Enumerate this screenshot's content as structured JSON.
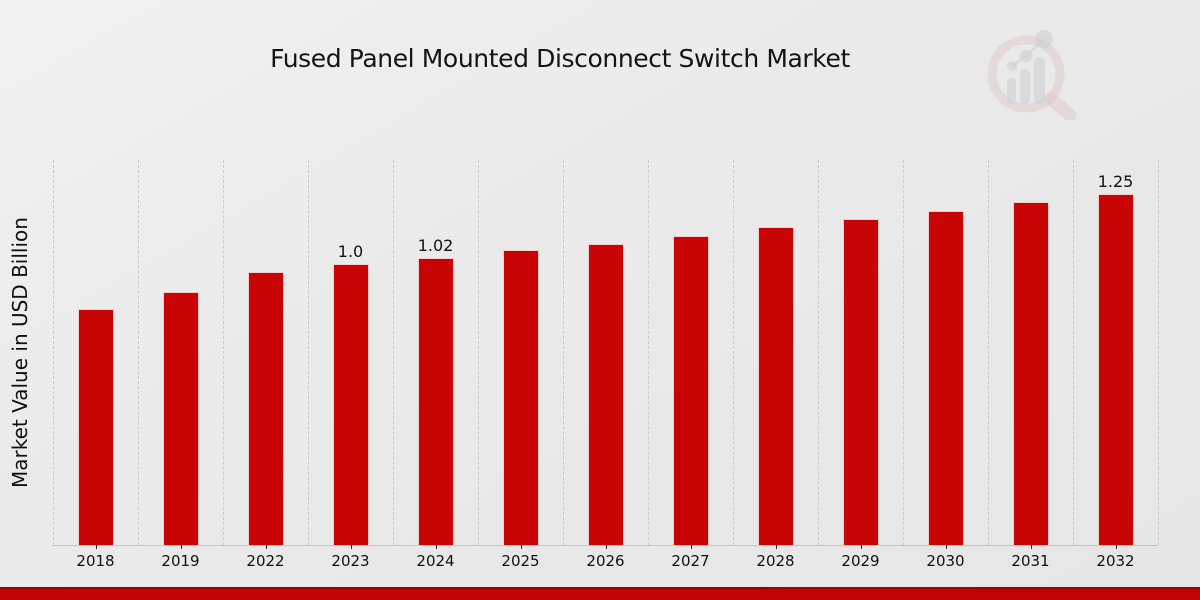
{
  "chart_data": {
    "type": "bar",
    "title": "Fused Panel Mounted Disconnect Switch Market",
    "xlabel": "",
    "ylabel": "Market Value in USD Billion",
    "categories": [
      "2018",
      "2019",
      "2022",
      "2023",
      "2024",
      "2025",
      "2026",
      "2027",
      "2028",
      "2029",
      "2030",
      "2031",
      "2032"
    ],
    "values": [
      0.84,
      0.9,
      0.97,
      1.0,
      1.02,
      1.05,
      1.07,
      1.1,
      1.13,
      1.16,
      1.19,
      1.22,
      1.25
    ],
    "data_labels": [
      "",
      "",
      "",
      "1.0",
      "1.02",
      "",
      "",
      "",
      "",
      "",
      "",
      "",
      "1.25"
    ],
    "ylim": [
      0,
      1.37
    ],
    "grid": "vertical-dashed",
    "legend": "none",
    "bar_color": "#c90404",
    "bar_edge_color": "#ffffff",
    "gridline_color": "#cbcbcb",
    "axis_line_color": "#c6c6c6",
    "text_color": "#111111"
  },
  "footer": {
    "accent_color": "#c00404",
    "accent_top_color": "#9a0202"
  },
  "watermark": {
    "icon": "magnifier-growth-chart-icon",
    "ring_color": "#d2a3a3",
    "bars_color": "#b7bac0"
  }
}
